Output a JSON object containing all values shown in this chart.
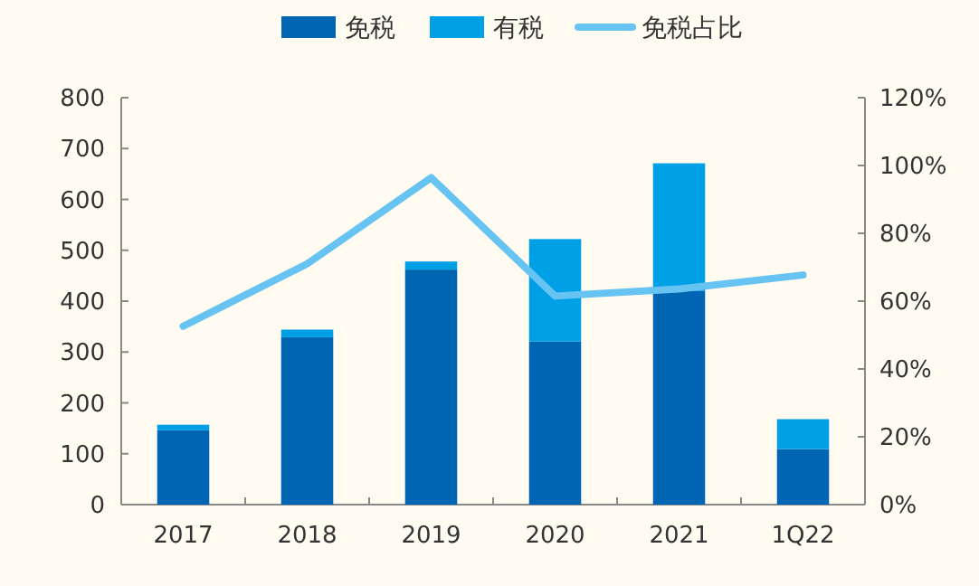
{
  "chart_data": {
    "type": "bar",
    "stacked": true,
    "legend": "top",
    "grid": false,
    "categories": [
      "2017",
      "2018",
      "2019",
      "2020",
      "2021",
      "1Q22"
    ],
    "series": [
      {
        "name": "免税",
        "color": "#0066b3",
        "values": [
          146,
          329,
          462,
          321,
          420,
          109
        ]
      },
      {
        "name": "有税",
        "color": "#00a0e6",
        "values": [
          11,
          15,
          16,
          201,
          251,
          59
        ]
      },
      {
        "name": "免税占比",
        "type": "line",
        "axis": "y2",
        "color": "#66c3f2",
        "values": [
          52.6,
          71,
          96.4,
          61.5,
          63.6,
          67.7
        ]
      }
    ],
    "ylim": [
      0,
      800
    ],
    "yticks": [
      0,
      100,
      200,
      300,
      400,
      500,
      600,
      700,
      800
    ],
    "y2lim": [
      0,
      120
    ],
    "y2ticks": [
      {
        "value": 0,
        "label": "0%"
      },
      {
        "value": 20,
        "label": "20%"
      },
      {
        "value": 40,
        "label": "40%"
      },
      {
        "value": 60,
        "label": "60%"
      },
      {
        "value": 80,
        "label": "80%"
      },
      {
        "value": 100,
        "label": "100%"
      },
      {
        "value": 120,
        "label": "120%"
      }
    ]
  }
}
